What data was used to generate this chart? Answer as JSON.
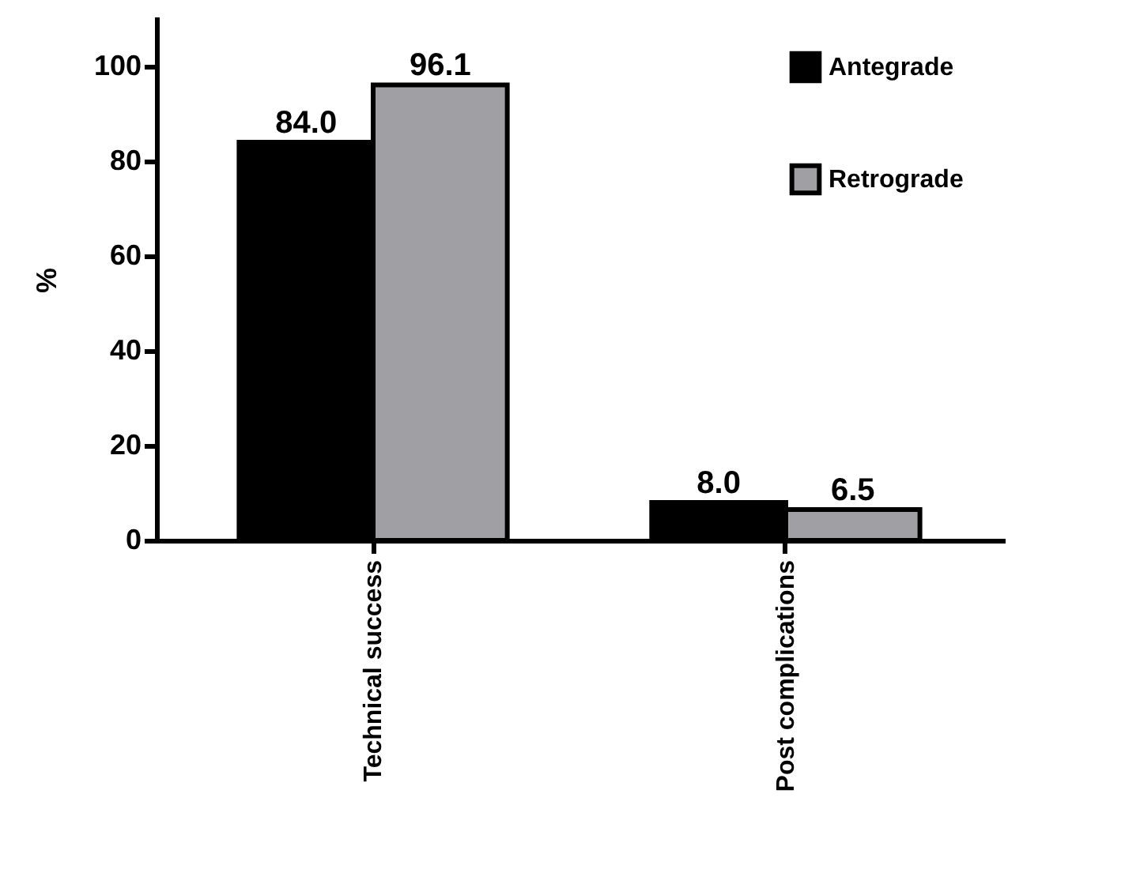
{
  "chart_data": {
    "type": "bar",
    "ylabel": "%",
    "categories": [
      "Technical success",
      "Post complications"
    ],
    "series": [
      {
        "name": "Antegrade",
        "color": "#000000",
        "values": [
          84.0,
          8.0
        ],
        "value_labels": [
          "84.0",
          "8.0"
        ]
      },
      {
        "name": "Retrograde",
        "color": "#a0a0a4",
        "values": [
          96.1,
          6.5
        ],
        "value_labels": [
          "96.1",
          "6.5"
        ]
      }
    ],
    "ylim": [
      0,
      110
    ],
    "yticks": [
      0,
      20,
      40,
      60,
      80,
      100
    ],
    "legend": "top right",
    "grid": false
  }
}
